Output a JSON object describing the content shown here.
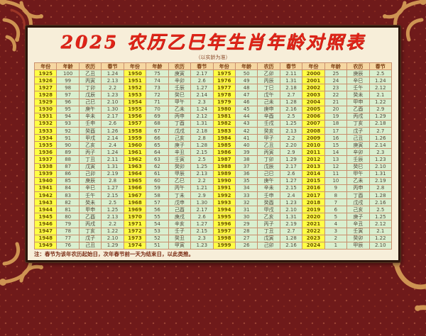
{
  "page": {
    "title": "2025 农历乙巳年生肖年龄对照表",
    "subtitle": "（以实龄为准）",
    "footnote": "注：春节为该年农历起始日，次年春节前一天为结束日，以此类推。"
  },
  "colors": {
    "background_maroon": "#6f1a1a",
    "panel_cream": "#f7eed9",
    "title_red": "#e02418",
    "header_peach": "#f6d7a2",
    "year_yellow": "#ffff45",
    "cell_green": "#d9efcf",
    "grid_brown": "#c98f6d",
    "ornament_gold": "#d49a55"
  },
  "table": {
    "column_headers": [
      "年份",
      "年龄",
      "农历",
      "春节"
    ],
    "groups": [
      {
        "rows": [
          [
            "1925",
            "100",
            "乙丑",
            "1.24"
          ],
          [
            "1926",
            "99",
            "丙寅",
            "2.13"
          ],
          [
            "1927",
            "98",
            "丁卯",
            "2.2"
          ],
          [
            "1928",
            "97",
            "戊辰",
            "1.23"
          ],
          [
            "1929",
            "96",
            "己巳",
            "2.10"
          ],
          [
            "1930",
            "95",
            "庚午",
            "1.30"
          ],
          [
            "1931",
            "94",
            "辛未",
            "2.17"
          ],
          [
            "1932",
            "93",
            "壬申",
            "2.6"
          ],
          [
            "1933",
            "92",
            "癸酉",
            "1.26"
          ],
          [
            "1934",
            "91",
            "甲戌",
            "2.14"
          ],
          [
            "1935",
            "90",
            "乙亥",
            "2.4"
          ],
          [
            "1936",
            "89",
            "丙子",
            "1.24"
          ],
          [
            "1937",
            "88",
            "丁丑",
            "2.11"
          ],
          [
            "1938",
            "87",
            "戊寅",
            "1.31"
          ],
          [
            "1939",
            "86",
            "己卯",
            "2.19"
          ],
          [
            "1940",
            "85",
            "庚辰",
            "2.8"
          ],
          [
            "1941",
            "84",
            "辛巳",
            "1.27"
          ],
          [
            "1942",
            "83",
            "壬午",
            "2.15"
          ],
          [
            "1943",
            "82",
            "癸未",
            "2.5"
          ],
          [
            "1944",
            "81",
            "甲申",
            "1.25"
          ],
          [
            "1945",
            "80",
            "乙酉",
            "2.13"
          ],
          [
            "1946",
            "79",
            "丙戌",
            "2.2"
          ],
          [
            "1947",
            "78",
            "丁亥",
            "1.22"
          ],
          [
            "1948",
            "77",
            "戊子",
            "2.10"
          ],
          [
            "1949",
            "76",
            "己丑",
            "1.29"
          ]
        ]
      },
      {
        "rows": [
          [
            "1950",
            "75",
            "庚寅",
            "2.17"
          ],
          [
            "1951",
            "74",
            "辛卯",
            "2.6"
          ],
          [
            "1952",
            "73",
            "壬辰",
            "1.27"
          ],
          [
            "1953",
            "72",
            "癸巳",
            "2.14"
          ],
          [
            "1954",
            "71",
            "甲午",
            "2.3"
          ],
          [
            "1955",
            "70",
            "乙未",
            "1.24"
          ],
          [
            "1956",
            "69",
            "丙申",
            "2.12"
          ],
          [
            "1957",
            "68",
            "丁酉",
            "1.31"
          ],
          [
            "1958",
            "67",
            "戊戌",
            "2.18"
          ],
          [
            "1959",
            "66",
            "己亥",
            "2.8"
          ],
          [
            "1960",
            "65",
            "庚子",
            "1.28"
          ],
          [
            "1961",
            "64",
            "辛丑",
            "2.15"
          ],
          [
            "1962",
            "63",
            "壬寅",
            "2.5"
          ],
          [
            "1963",
            "62",
            "癸卯",
            "1.25"
          ],
          [
            "1964",
            "61",
            "甲辰",
            "2.13"
          ],
          [
            "1965",
            "60",
            "乙巳",
            "2.2"
          ],
          [
            "1966",
            "59",
            "丙午",
            "1.21"
          ],
          [
            "1967",
            "58",
            "丁未",
            "2.9"
          ],
          [
            "1968",
            "57",
            "戊申",
            "1.30"
          ],
          [
            "1969",
            "56",
            "己酉",
            "2.17"
          ],
          [
            "1970",
            "55",
            "庚戌",
            "2.6"
          ],
          [
            "1971",
            "54",
            "辛亥",
            "1.27"
          ],
          [
            "1972",
            "53",
            "壬子",
            "2.15"
          ],
          [
            "1973",
            "52",
            "癸丑",
            "2.3"
          ],
          [
            "1974",
            "51",
            "甲寅",
            "1.23"
          ]
        ]
      },
      {
        "rows": [
          [
            "1975",
            "50",
            "乙卯",
            "2.11"
          ],
          [
            "1976",
            "49",
            "丙辰",
            "1.31"
          ],
          [
            "1977",
            "48",
            "丁巳",
            "2.18"
          ],
          [
            "1978",
            "47",
            "戊午",
            "2.7"
          ],
          [
            "1979",
            "46",
            "己未",
            "1.28"
          ],
          [
            "1980",
            "45",
            "庚申",
            "2.16"
          ],
          [
            "1981",
            "44",
            "辛酉",
            "2.5"
          ],
          [
            "1982",
            "43",
            "壬戌",
            "1.25"
          ],
          [
            "1983",
            "42",
            "癸亥",
            "2.13"
          ],
          [
            "1984",
            "41",
            "甲子",
            "2.2"
          ],
          [
            "1985",
            "40",
            "乙丑",
            "2.20"
          ],
          [
            "1986",
            "39",
            "丙寅",
            "2.9"
          ],
          [
            "1987",
            "38",
            "丁卯",
            "1.29"
          ],
          [
            "1988",
            "37",
            "戊辰",
            "2.17"
          ],
          [
            "1989",
            "36",
            "己巳",
            "2.6"
          ],
          [
            "1990",
            "35",
            "庚午",
            "1.27"
          ],
          [
            "1991",
            "34",
            "辛未",
            "2.15"
          ],
          [
            "1992",
            "33",
            "壬申",
            "2.4"
          ],
          [
            "1993",
            "32",
            "癸酉",
            "1.23"
          ],
          [
            "1994",
            "31",
            "甲戌",
            "2.10"
          ],
          [
            "1995",
            "30",
            "乙亥",
            "1.31"
          ],
          [
            "1996",
            "29",
            "丙子",
            "2.19"
          ],
          [
            "1997",
            "28",
            "丁丑",
            "2.7"
          ],
          [
            "1998",
            "27",
            "戊寅",
            "1.28"
          ],
          [
            "1999",
            "26",
            "己卯",
            "2.16"
          ]
        ]
      },
      {
        "rows": [
          [
            "2000",
            "25",
            "庚辰",
            "2.5"
          ],
          [
            "2001",
            "24",
            "辛巳",
            "1.24"
          ],
          [
            "2002",
            "23",
            "壬午",
            "2.12"
          ],
          [
            "2003",
            "22",
            "癸未",
            "2.1"
          ],
          [
            "2004",
            "21",
            "甲申",
            "1.22"
          ],
          [
            "2005",
            "20",
            "乙酉",
            "2.9"
          ],
          [
            "2006",
            "19",
            "丙戌",
            "1.29"
          ],
          [
            "2007",
            "18",
            "丁亥",
            "2.18"
          ],
          [
            "2008",
            "17",
            "戊子",
            "2.7"
          ],
          [
            "2009",
            "16",
            "己丑",
            "1.26"
          ],
          [
            "2010",
            "15",
            "庚寅",
            "2.14"
          ],
          [
            "2011",
            "14",
            "辛卯",
            "2.3"
          ],
          [
            "2012",
            "13",
            "壬辰",
            "1.23"
          ],
          [
            "2013",
            "12",
            "癸巳",
            "2.10"
          ],
          [
            "2014",
            "11",
            "甲午",
            "1.31"
          ],
          [
            "2015",
            "10",
            "乙未",
            "2.19"
          ],
          [
            "2016",
            "9",
            "丙申",
            "2.8"
          ],
          [
            "2017",
            "8",
            "丁酉",
            "1.28"
          ],
          [
            "2018",
            "7",
            "戊戌",
            "2.16"
          ],
          [
            "2019",
            "6",
            "己亥",
            "2.5"
          ],
          [
            "2020",
            "5",
            "庚子",
            "1.25"
          ],
          [
            "2021",
            "4",
            "辛丑",
            "2.12"
          ],
          [
            "2022",
            "3",
            "壬寅",
            "2.1"
          ],
          [
            "2023",
            "2",
            "癸卯",
            "1.22"
          ],
          [
            "2024",
            "1",
            "甲辰",
            "2.10"
          ]
        ]
      }
    ]
  }
}
